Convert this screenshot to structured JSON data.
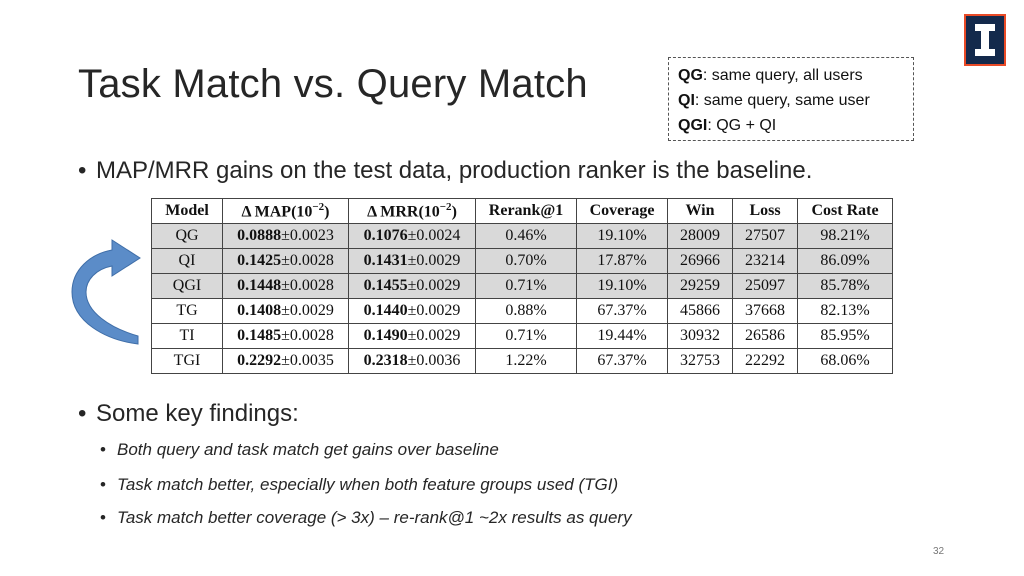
{
  "slide": {
    "title": "Task Match vs. Query Match",
    "page_number": "32"
  },
  "legend": [
    {
      "key": "QG",
      "desc": ": same query, all users"
    },
    {
      "key": "QI",
      "desc": ": same query, same user"
    },
    {
      "key": "QGI",
      "desc": ": QG + QI"
    }
  ],
  "bullets": {
    "main": "MAP/MRR gains on the test data, production ranker is the baseline.",
    "findings_title": "Some key findings:",
    "findings": [
      "Both query and task match get gains over baseline",
      "Task match better, especially when both feature groups used (TGI)",
      "Task match better coverage (> 3x) – re-rank@1 ~2x results as query"
    ]
  },
  "table": {
    "headers": {
      "model": "Model",
      "map_prefix": "Δ MAP(10",
      "map_exp": "−2",
      "map_suffix": ")",
      "mrr_prefix": "Δ MRR(10",
      "mrr_exp": "−2",
      "mrr_suffix": ")",
      "rerank": "Rerank@1",
      "coverage": "Coverage",
      "win": "Win",
      "loss": "Loss",
      "cost": "Cost Rate"
    },
    "rows": [
      {
        "model": "QG",
        "map": "0.0888",
        "map_err": "±0.0023",
        "mrr": "0.1076",
        "mrr_err": "±0.0024",
        "rerank": "0.46%",
        "coverage": "19.10%",
        "win": "28009",
        "loss": "27507",
        "cost": "98.21%"
      },
      {
        "model": "QI",
        "map": "0.1425",
        "map_err": "±0.0028",
        "mrr": "0.1431",
        "mrr_err": "±0.0029",
        "rerank": "0.70%",
        "coverage": "17.87%",
        "win": "26966",
        "loss": "23214",
        "cost": "86.09%"
      },
      {
        "model": "QGI",
        "map": "0.1448",
        "map_err": "±0.0028",
        "mrr": "0.1455",
        "mrr_err": "±0.0029",
        "rerank": "0.71%",
        "coverage": "19.10%",
        "win": "29259",
        "loss": "25097",
        "cost": "85.78%"
      },
      {
        "model": "TG",
        "map": "0.1408",
        "map_err": "±0.0029",
        "mrr": "0.1440",
        "mrr_err": "±0.0029",
        "rerank": "0.88%",
        "coverage": "67.37%",
        "win": "45866",
        "loss": "37668",
        "cost": "82.13%"
      },
      {
        "model": "TI",
        "map": "0.1485",
        "map_err": "±0.0028",
        "mrr": "0.1490",
        "mrr_err": "±0.0029",
        "rerank": "0.71%",
        "coverage": "19.44%",
        "win": "30932",
        "loss": "26586",
        "cost": "85.95%"
      },
      {
        "model": "TGI",
        "map": "0.2292",
        "map_err": "±0.0035",
        "mrr": "0.2318",
        "mrr_err": "±0.0036",
        "rerank": "1.22%",
        "coverage": "67.37%",
        "win": "32753",
        "loss": "22292",
        "cost": "68.06%"
      }
    ]
  },
  "colors": {
    "shaded_row": "#d9d9d9",
    "arrow_fill": "#5b8cc8",
    "logo_navy": "#13294b",
    "logo_orange": "#e84a27"
  }
}
